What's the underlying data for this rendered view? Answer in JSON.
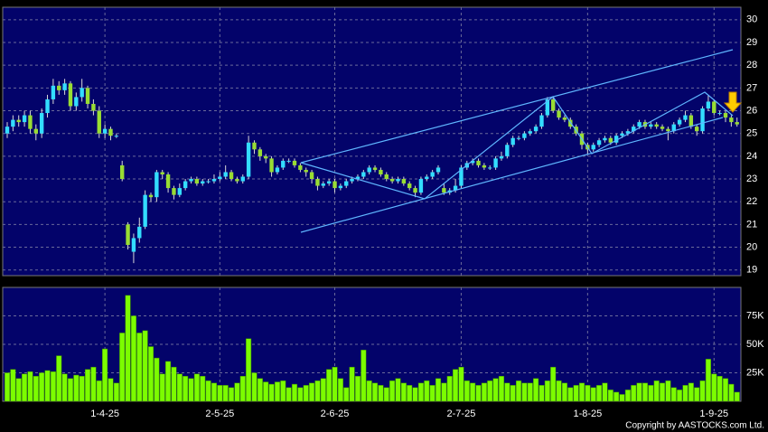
{
  "chart_data": [
    {
      "type": "candlestick",
      "grid": true,
      "up_color": "#33ddff",
      "down_color": "#99dd33",
      "wick_color": "#d8d8d8",
      "ylim": [
        18.75,
        30.55
      ],
      "yticks": [
        19,
        20,
        21,
        22,
        23,
        24,
        25,
        26,
        27,
        28,
        29,
        30
      ],
      "open": [
        25.0,
        25.3,
        25.6,
        25.5,
        25.8,
        25.2,
        25.0,
        25.9,
        26.5,
        27.1,
        26.9,
        27.2,
        26.2,
        26.6,
        27.0,
        26.3,
        26.0,
        25.0,
        25.2,
        24.9,
        23.6,
        21.0,
        19.8,
        20.4,
        20.9,
        22.3,
        22.2,
        23.3,
        23.2,
        22.6,
        22.3,
        22.6,
        22.9,
        23.0,
        22.8,
        22.9,
        22.9,
        23.0,
        23.1,
        23.3,
        23.0,
        22.9,
        23.1,
        24.6,
        24.3,
        24.0,
        23.9,
        23.3,
        23.5,
        23.8,
        23.8,
        23.6,
        23.4,
        23.3,
        23.0,
        22.7,
        22.8,
        22.9,
        22.6,
        22.7,
        22.9,
        23.0,
        23.1,
        23.3,
        23.5,
        23.4,
        23.2,
        23.0,
        22.9,
        23.0,
        22.8,
        22.6,
        22.4,
        23.0,
        23.1,
        23.3,
        22.6,
        22.4,
        22.5,
        22.7,
        23.5,
        23.7,
        23.8,
        23.6,
        23.5,
        23.5,
        23.9,
        24.0,
        24.5,
        24.8,
        24.8,
        25.0,
        25.1,
        25.3,
        25.8,
        26.5,
        26.0,
        25.7,
        25.6,
        25.3,
        25.0,
        24.5,
        24.3,
        24.5,
        24.7,
        24.8,
        24.6,
        24.9,
        25.0,
        25.1,
        25.3,
        25.5,
        25.3,
        25.4,
        25.3,
        25.2,
        25.1,
        25.4,
        25.6,
        25.8,
        25.3,
        25.1,
        26.1,
        26.4,
        25.9,
        25.9,
        25.7,
        25.5
      ],
      "high": [
        25.5,
        25.8,
        25.8,
        26.0,
        26.0,
        25.4,
        26.1,
        26.7,
        27.4,
        27.3,
        27.4,
        27.3,
        26.8,
        27.4,
        27.1,
        26.5,
        26.2,
        25.4,
        25.3,
        25.0,
        23.8,
        21.1,
        20.6,
        21.3,
        22.5,
        22.4,
        23.4,
        23.4,
        23.3,
        22.7,
        22.8,
        23.0,
        23.1,
        23.1,
        23.0,
        23.0,
        23.2,
        23.3,
        23.6,
        23.4,
        23.1,
        23.2,
        24.9,
        24.7,
        24.4,
        24.1,
        24.0,
        23.6,
        23.9,
        23.9,
        23.9,
        23.7,
        23.5,
        23.4,
        23.1,
        22.9,
        23.0,
        23.0,
        22.8,
        23.0,
        23.1,
        23.2,
        23.4,
        23.6,
        23.6,
        23.5,
        23.3,
        23.1,
        23.1,
        23.1,
        22.9,
        22.7,
        23.1,
        23.2,
        23.4,
        23.6,
        22.8,
        22.6,
        23.0,
        23.6,
        23.8,
        23.9,
        23.9,
        23.7,
        23.6,
        24.0,
        24.2,
        24.6,
        24.9,
        24.9,
        25.1,
        25.2,
        25.4,
        25.9,
        26.6,
        26.6,
        26.1,
        25.8,
        25.7,
        25.4,
        25.1,
        24.6,
        24.6,
        24.8,
        24.9,
        24.9,
        25.0,
        25.1,
        25.2,
        25.4,
        25.6,
        25.6,
        25.5,
        25.5,
        25.4,
        25.3,
        25.5,
        25.7,
        26.0,
        25.9,
        25.4,
        26.2,
        26.7,
        26.5,
        26.0,
        26.0,
        25.8,
        25.7
      ],
      "low": [
        24.8,
        25.1,
        25.3,
        25.3,
        25.0,
        24.7,
        24.8,
        25.7,
        26.3,
        26.7,
        26.7,
        26.0,
        26.0,
        26.4,
        26.1,
        25.8,
        24.8,
        24.8,
        24.7,
        24.8,
        22.9,
        19.9,
        19.3,
        20.2,
        20.8,
        22.0,
        22.0,
        23.0,
        22.4,
        22.1,
        22.2,
        22.5,
        22.8,
        22.7,
        22.7,
        22.8,
        22.8,
        22.9,
        23.0,
        22.9,
        22.8,
        22.8,
        23.0,
        24.1,
        23.8,
        23.7,
        23.1,
        23.2,
        23.4,
        23.7,
        23.5,
        23.3,
        23.1,
        22.8,
        22.5,
        22.6,
        22.7,
        22.4,
        22.5,
        22.6,
        22.8,
        22.9,
        23.0,
        23.2,
        23.3,
        23.1,
        22.9,
        22.8,
        22.8,
        22.7,
        22.5,
        22.2,
        22.3,
        22.9,
        23.0,
        23.2,
        22.3,
        22.3,
        22.4,
        22.6,
        23.4,
        23.6,
        23.5,
        23.4,
        23.4,
        23.4,
        23.8,
        23.9,
        24.4,
        24.7,
        24.7,
        24.9,
        25.0,
        25.2,
        25.7,
        25.9,
        25.6,
        25.5,
        25.2,
        24.9,
        24.3,
        24.1,
        24.2,
        24.4,
        24.6,
        24.5,
        24.5,
        24.8,
        24.9,
        25.0,
        25.2,
        25.2,
        25.2,
        25.2,
        25.1,
        24.7,
        25.0,
        25.3,
        25.5,
        25.2,
        24.9,
        25.0,
        26.0,
        25.8,
        25.8,
        25.5,
        25.3,
        25.3
      ],
      "close": [
        25.3,
        25.6,
        25.5,
        25.8,
        25.2,
        25.0,
        25.9,
        26.5,
        27.1,
        26.9,
        27.2,
        26.2,
        26.6,
        27.0,
        26.3,
        26.0,
        25.0,
        25.2,
        24.9,
        24.9,
        23.0,
        20.1,
        20.4,
        20.9,
        22.3,
        22.2,
        23.3,
        23.2,
        22.6,
        22.3,
        22.6,
        22.9,
        23.0,
        22.8,
        22.9,
        22.9,
        23.0,
        23.1,
        23.3,
        23.0,
        22.9,
        23.1,
        24.6,
        24.3,
        24.0,
        23.9,
        23.3,
        23.5,
        23.8,
        23.8,
        23.6,
        23.4,
        23.3,
        23.0,
        22.7,
        22.8,
        22.9,
        22.6,
        22.7,
        22.9,
        23.0,
        23.1,
        23.3,
        23.5,
        23.4,
        23.2,
        23.0,
        22.9,
        23.0,
        22.8,
        22.6,
        22.4,
        23.0,
        23.1,
        23.3,
        23.5,
        22.4,
        22.5,
        22.7,
        23.5,
        23.7,
        23.8,
        23.6,
        23.5,
        23.5,
        23.9,
        24.0,
        24.5,
        24.8,
        24.8,
        25.0,
        25.1,
        25.3,
        25.8,
        26.5,
        26.0,
        25.7,
        25.6,
        25.3,
        25.0,
        24.5,
        24.3,
        24.5,
        24.7,
        24.8,
        24.6,
        24.9,
        25.0,
        25.1,
        25.3,
        25.5,
        25.3,
        25.4,
        25.3,
        25.2,
        25.1,
        25.4,
        25.6,
        25.8,
        25.3,
        25.1,
        26.1,
        26.4,
        25.9,
        25.9,
        25.7,
        25.5,
        25.4
      ]
    },
    {
      "type": "bar",
      "grid": true,
      "color": "#7cfc00",
      "ylim": [
        0,
        100000
      ],
      "yticks": [
        {
          "value": 25000,
          "label": "25K"
        },
        {
          "value": 50000,
          "label": "50K"
        },
        {
          "value": 75000,
          "label": "75K"
        }
      ],
      "categories": [
        null,
        null,
        null,
        null,
        null,
        null,
        null,
        null,
        null,
        null,
        null,
        null,
        null,
        null,
        null,
        null,
        null,
        "1-4-25",
        null,
        null,
        null,
        null,
        null,
        null,
        null,
        null,
        null,
        null,
        null,
        null,
        null,
        null,
        null,
        null,
        null,
        null,
        null,
        "2-5-25",
        null,
        null,
        null,
        null,
        null,
        null,
        null,
        null,
        null,
        null,
        null,
        null,
        null,
        null,
        null,
        null,
        null,
        null,
        null,
        "2-6-25",
        null,
        null,
        null,
        null,
        null,
        null,
        null,
        null,
        null,
        null,
        null,
        null,
        null,
        null,
        null,
        null,
        null,
        null,
        null,
        null,
        null,
        "2-7-25",
        null,
        null,
        null,
        null,
        null,
        null,
        null,
        null,
        null,
        null,
        null,
        null,
        null,
        null,
        null,
        null,
        null,
        null,
        null,
        null,
        null,
        "1-8-25",
        null,
        null,
        null,
        null,
        null,
        null,
        null,
        null,
        null,
        null,
        null,
        null,
        null,
        null,
        null,
        null,
        null,
        null,
        null,
        null,
        null,
        "1-9-25",
        null,
        null,
        null,
        null
      ],
      "values": [
        25000,
        28000,
        20000,
        24000,
        26000,
        22000,
        25000,
        27000,
        26000,
        40000,
        24000,
        20000,
        23000,
        22000,
        28000,
        30000,
        18000,
        46000,
        20000,
        16000,
        60000,
        93000,
        75000,
        60000,
        62000,
        48000,
        38000,
        24000,
        35000,
        30000,
        24000,
        22000,
        20000,
        24000,
        22000,
        18000,
        16000,
        14000,
        14000,
        12000,
        16000,
        22000,
        55000,
        25000,
        20000,
        17000,
        15000,
        17000,
        18000,
        12000,
        15000,
        12000,
        14000,
        16000,
        18000,
        20000,
        28000,
        30000,
        20000,
        12000,
        30000,
        22000,
        45000,
        18000,
        16000,
        14000,
        12000,
        18000,
        20000,
        16000,
        14000,
        12000,
        16000,
        18000,
        14000,
        20000,
        16000,
        22000,
        28000,
        30000,
        18000,
        16000,
        14000,
        16000,
        18000,
        20000,
        22000,
        16000,
        14000,
        18000,
        16000,
        16000,
        20000,
        14000,
        18000,
        30000,
        18000,
        16000,
        12000,
        14000,
        16000,
        14000,
        12000,
        14000,
        16000,
        10000,
        8000,
        6000,
        10000,
        14000,
        16000,
        16000,
        14000,
        18000,
        16000,
        18000,
        12000,
        10000,
        14000,
        16000,
        12000,
        18000,
        37000,
        24000,
        22000,
        20000,
        15000,
        8000
      ]
    }
  ],
  "copyright": "Copyright by AASTOCKS.com Ltd."
}
